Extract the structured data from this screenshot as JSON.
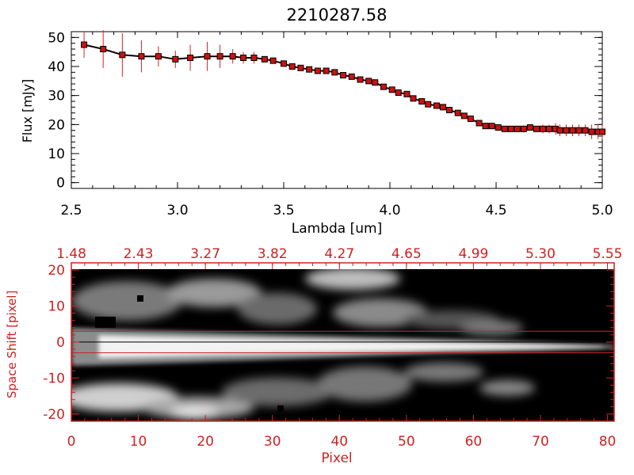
{
  "chart_data": [
    {
      "type": "line",
      "title": "2210287.58",
      "xlabel": "Lambda [um]",
      "ylabel": "Flux [mJy]",
      "xlim": [
        2.5,
        5.0
      ],
      "ylim": [
        -2,
        52
      ],
      "x_ticks": [
        2.5,
        3.0,
        3.5,
        4.0,
        4.5,
        5.0
      ],
      "x_tick_labels": [
        "2.5",
        "3.0",
        "3.5",
        "4.0",
        "4.5",
        "5.0"
      ],
      "y_ticks": [
        0,
        10,
        20,
        30,
        40,
        50
      ],
      "y_tick_labels": [
        "0",
        "10",
        "20",
        "30",
        "40",
        "50"
      ],
      "colors": {
        "line": "#000000",
        "marker": "#cc1111",
        "errorbar": "#dd2222"
      },
      "series": [
        {
          "name": "flux",
          "x": [
            2.56,
            2.65,
            2.74,
            2.83,
            2.91,
            2.99,
            3.06,
            3.14,
            3.2,
            3.26,
            3.31,
            3.36,
            3.41,
            3.45,
            3.5,
            3.54,
            3.58,
            3.62,
            3.66,
            3.7,
            3.74,
            3.78,
            3.82,
            3.86,
            3.9,
            3.93,
            3.97,
            4.01,
            4.04,
            4.08,
            4.11,
            4.15,
            4.18,
            4.22,
            4.25,
            4.28,
            4.32,
            4.35,
            4.38,
            4.42,
            4.45,
            4.48,
            4.51,
            4.54,
            4.57,
            4.6,
            4.63,
            4.66,
            4.69,
            4.72,
            4.75,
            4.78,
            4.8,
            4.83,
            4.86,
            4.89,
            4.92,
            4.95,
            4.98,
            5.0
          ],
          "y": [
            47.5,
            46.0,
            44.0,
            43.5,
            43.5,
            42.5,
            43.0,
            43.5,
            43.5,
            43.5,
            43.0,
            43.0,
            42.5,
            42.0,
            41.0,
            40.0,
            39.5,
            39.0,
            38.5,
            38.5,
            38.0,
            37.0,
            36.5,
            35.5,
            35.0,
            34.5,
            33.0,
            32.0,
            31.0,
            30.5,
            29.0,
            28.0,
            27.0,
            26.5,
            26.0,
            25.0,
            24.0,
            23.0,
            22.0,
            20.5,
            19.5,
            19.5,
            19.0,
            18.5,
            18.5,
            18.5,
            18.5,
            19.0,
            18.5,
            18.5,
            18.5,
            18.5,
            18.0,
            18.0,
            18.0,
            18.0,
            18.0,
            17.5,
            17.5,
            17.5
          ],
          "err": [
            4.5,
            6.5,
            7.5,
            5.5,
            3.5,
            3.0,
            4.5,
            5.0,
            4.0,
            2.5,
            2.0,
            2.0,
            1.0,
            0.5,
            0.4,
            0.4,
            0.4,
            0.4,
            0.4,
            0.4,
            0.4,
            0.4,
            0.4,
            0.4,
            0.4,
            0.4,
            0.4,
            0.4,
            0.4,
            0.4,
            0.4,
            0.4,
            0.4,
            0.4,
            0.4,
            0.4,
            0.4,
            0.4,
            0.4,
            0.4,
            0.4,
            0.5,
            0.8,
            1.0,
            1.0,
            1.0,
            1.2,
            1.0,
            1.0,
            1.5,
            1.5,
            2.0,
            2.0,
            2.0,
            2.0,
            2.0,
            2.0,
            2.5,
            2.5,
            2.5
          ]
        }
      ]
    },
    {
      "type": "heatmap",
      "title": "",
      "xlabel": "Pixel",
      "ylabel": "Space Shift [pixel]",
      "xlim": [
        0,
        81
      ],
      "ylim": [
        -22,
        22
      ],
      "x_ticks": [
        0,
        10,
        20,
        30,
        40,
        50,
        60,
        70,
        80
      ],
      "x_tick_labels": [
        "0",
        "10",
        "20",
        "30",
        "40",
        "50",
        "60",
        "70",
        "80"
      ],
      "y_ticks": [
        -20,
        -10,
        0,
        10,
        20
      ],
      "y_tick_labels": [
        "-20",
        "-10",
        "0",
        "10",
        "20"
      ],
      "top_axis_ticks": [
        0,
        10,
        20,
        30,
        40,
        50,
        60,
        70,
        80
      ],
      "top_axis_labels": [
        "1.48",
        "2.43",
        "3.27",
        "3.82",
        "4.27",
        "4.65",
        "4.99",
        "5.30",
        "5.55"
      ],
      "aperture_lines": [
        3,
        -3
      ],
      "center_line": 0,
      "colors": {
        "axis": "#cc2222",
        "aperture": "#cc2222",
        "center": "#000000"
      },
      "trace_description": "bright spectral trace centred at 0 narrowing toward larger pixel, secondary bright bands near -12 and +12"
    }
  ]
}
